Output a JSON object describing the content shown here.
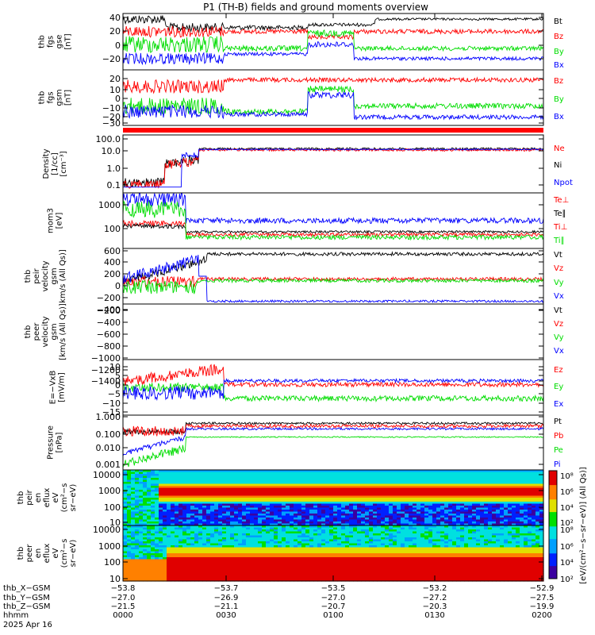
{
  "title": "P1 (TH-B) fields and ground moments overview",
  "colors": {
    "black": "#000000",
    "red": "#ff0000",
    "green": "#00dd00",
    "blue": "#0000ff"
  },
  "chart_data": [
    {
      "type": "line",
      "ylabel": [
        "thb",
        "fgs",
        "gse",
        "[nT]"
      ],
      "yticks": [
        "40",
        "20",
        "0",
        "−20"
      ],
      "ylim": [
        -35,
        45
      ],
      "series": [
        {
          "name": "Bt",
          "color": "red_black",
          "values": []
        },
        {
          "name": "Bz"
        },
        {
          "name": "By"
        },
        {
          "name": "Bx"
        }
      ],
      "legend": [
        "Bt",
        "Bz",
        "By",
        "Bx"
      ]
    },
    {
      "type": "line",
      "ylabel": [
        "thb",
        "fgs",
        "gsm",
        "[nT]"
      ],
      "yticks": [
        "20",
        "10",
        "0",
        "−10",
        "−20",
        "−30"
      ],
      "ylim": [
        -35,
        25
      ],
      "legend": [
        "Bz",
        "By",
        "Bx"
      ]
    },
    {
      "type": "line",
      "ylabel": [
        "Density",
        "[1/cc]",
        "[cm⁻³]"
      ],
      "yticks": [
        "100.0",
        "10.0",
        "1.0",
        "0.1"
      ],
      "scale": "log",
      "legend": [
        "Ne",
        "Ni",
        "Npot"
      ]
    },
    {
      "type": "line",
      "ylabel": [
        "mom3",
        "[eV]"
      ],
      "yticks": [
        "1000",
        "100"
      ],
      "scale": "log",
      "legend": [
        "Te⊥",
        "Te∥",
        "Ti⊥",
        "Ti∥"
      ]
    },
    {
      "type": "line",
      "ylabel": [
        "thb",
        "peir",
        "velocity",
        "gsm",
        "km/s (All Qs)]"
      ],
      "yticks": [
        "600",
        "400",
        "200",
        "0",
        "−200",
        "−400"
      ],
      "ylim": [
        -520,
        620
      ],
      "legend": [
        "Vt",
        "Vz",
        "Vy",
        "Vx"
      ]
    },
    {
      "type": "line",
      "ylabel": [
        "thb",
        "peer",
        "velocity",
        "gsm",
        "[km/s (All Qs)]"
      ],
      "yticks": [
        "−200",
        "−400",
        "−600",
        "−800",
        "−1000",
        "−1200",
        "−1400"
      ],
      "legend": [
        "Vt",
        "Vz",
        "Vy",
        "Vx"
      ]
    },
    {
      "type": "line",
      "ylabel": [
        "E=−VxB",
        "[mV/m]"
      ],
      "yticks": [
        "10",
        "5",
        "0",
        "−5",
        "−10",
        "−15"
      ],
      "ylim": [
        -16,
        12
      ],
      "legend": [
        "Ez",
        "Ey",
        "Ex"
      ]
    },
    {
      "type": "line",
      "ylabel": [
        "Pressure",
        "[nPa]"
      ],
      "yticks": [
        "1.000",
        "0.100",
        "0.010",
        "0.001"
      ],
      "scale": "log",
      "legend": [
        "Pt",
        "Pb",
        "Pe",
        "Pi"
      ]
    },
    {
      "type": "heatmap",
      "ylabel": [
        "thb",
        "peir",
        "en",
        "eflux",
        "eV",
        "(cm²−s",
        "sr−eV)"
      ],
      "yticks": [
        "10000",
        "1000",
        "100",
        "10"
      ],
      "scale": "log"
    },
    {
      "type": "heatmap",
      "ylabel": [
        "thb",
        "peer",
        "en",
        "eflux",
        "eV",
        "(cm²−s",
        "sr−eV)"
      ],
      "yticks": [
        "10000",
        "1000",
        "100",
        "10"
      ],
      "scale": "log"
    }
  ],
  "colorbar": {
    "ticks": [
      "10⁸",
      "10⁶",
      "10⁴",
      "10²"
    ],
    "ticks2": [
      "10⁸",
      "10⁶",
      "10⁴",
      "10²"
    ],
    "label": "[eV/(cm²−s−sr−eV)] (All Qs)]"
  },
  "xaxis": {
    "row_labels": [
      "thb_X−GSM",
      "thb_Y−GSM",
      "thb_Z−GSM",
      "hhmm",
      "2025 Apr 16"
    ],
    "columns": [
      [
        "−53.8",
        "−27.0",
        "−21.5",
        "0000"
      ],
      [
        "−53.7",
        "−26.9",
        "−21.1",
        "0030"
      ],
      [
        "−53.5",
        "−27.0",
        "−20.7",
        "0100"
      ],
      [
        "−53.2",
        "−27.2",
        "−20.3",
        "0130"
      ],
      [
        "−52.9",
        "−27.5",
        "−19.9",
        "0200"
      ]
    ]
  }
}
